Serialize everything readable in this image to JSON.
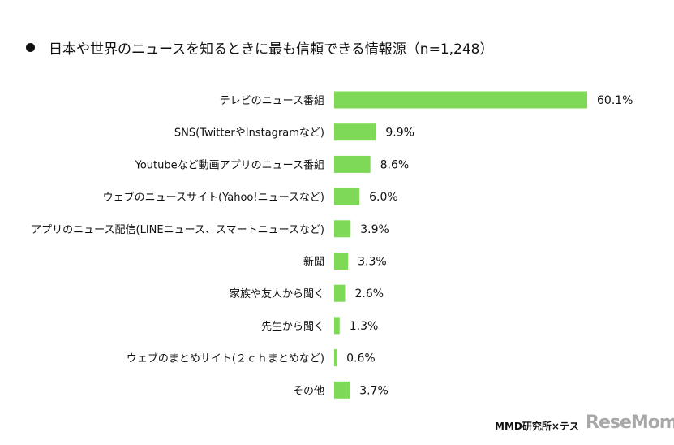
{
  "chart_data": {
    "type": "bar",
    "orientation": "horizontal",
    "title": "日本や世界のニュースを知るときに最も信頼できる情報源（n=1,248）",
    "categories": [
      "テレビのニュース番組",
      "SNS(TwitterやInstagramなど)",
      "Youtubeなど動画アプリのニュース番組",
      "ウェブのニュースサイト(Yahoo!ニュースなど)",
      "アプリのニュース配信(LINEニュース、スマートニュースなど)",
      "新聞",
      "家族や友人から聞く",
      "先生から聞く",
      "ウェブのまとめサイト(２ｃｈまとめなど)",
      "その他"
    ],
    "values": [
      60.1,
      9.9,
      8.6,
      6.0,
      3.9,
      3.3,
      2.6,
      1.3,
      0.6,
      3.7
    ],
    "value_labels": [
      "60.1%",
      "9.9%",
      "8.6%",
      "6.0%",
      "3.9%",
      "3.3%",
      "2.6%",
      "1.3%",
      "0.6%",
      "3.7%"
    ],
    "unit": "%",
    "bar_color": "#7ed957",
    "grid": false,
    "axes_visible": false
  },
  "credit": "MMD研究所×テス",
  "watermark": "ReseMom"
}
